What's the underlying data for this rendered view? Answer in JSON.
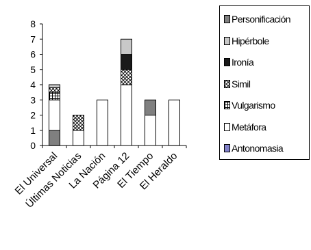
{
  "chart_data": {
    "type": "bar",
    "stacked": true,
    "categories": [
      "El Universal",
      "Últimas Noticias",
      "La Nación",
      "Página 12",
      "El Tiempo",
      "El Heraldo"
    ],
    "series": [
      {
        "name": "Antonomasia",
        "values": [
          0,
          0,
          0,
          0,
          0,
          0
        ],
        "color": "#8080c8",
        "pattern": "solid"
      },
      {
        "name": "Metáfora",
        "values": [
          3,
          1,
          3,
          4,
          2,
          3
        ],
        "color": "#ffffff",
        "pattern": "solid"
      },
      {
        "name": "Vulgarismo",
        "values": [
          0.5,
          0,
          0,
          0,
          0,
          0
        ],
        "color": "#ffffff",
        "pattern": "grid"
      },
      {
        "name": "Símil",
        "values": [
          0.3,
          1,
          0,
          1,
          0,
          0
        ],
        "color": "#ffffff",
        "pattern": "diamond"
      },
      {
        "name": "Ironía",
        "values": [
          0,
          0,
          0,
          1,
          0,
          0
        ],
        "color": "#1a1a1a",
        "pattern": "solid"
      },
      {
        "name": "Hipérbole",
        "values": [
          0.2,
          0,
          0,
          1,
          0,
          0
        ],
        "color": "#c8c8c8",
        "pattern": "solid"
      },
      {
        "name": "Personificación",
        "values": [
          0,
          0,
          0,
          0,
          1,
          0
        ],
        "color": "#808080",
        "pattern": "solid"
      }
    ],
    "bottom_override": {
      "El Universal": {
        "Personificación": 1
      }
    },
    "ylim": [
      0,
      8
    ],
    "yticks": [
      0,
      1,
      2,
      3,
      4,
      5,
      6,
      7,
      8
    ],
    "legend_labels": [
      "Personificación",
      "Hipérbole",
      "Ironía",
      "Simil",
      "Vulgarismo",
      "Metáfora",
      "Antonomasia"
    ],
    "legend_position": "right",
    "grid": false
  }
}
